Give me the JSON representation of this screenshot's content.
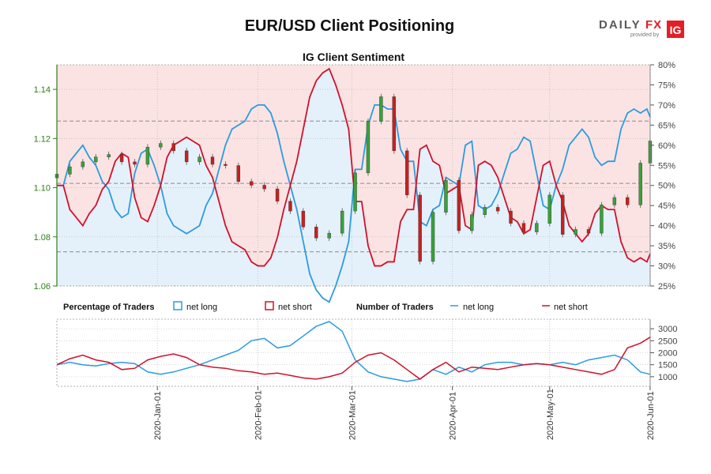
{
  "page": {
    "title": "EUR/USD Client Positioning"
  },
  "logo": {
    "brand": "DAILYFX",
    "tagline": "provided by",
    "badge": "IG"
  },
  "colors": {
    "long": "#2b9be0",
    "short": "#d0112b",
    "long_fill": "#e5f1fa",
    "short_fill": "#fbe3e3",
    "candle_up": "#3aa13a",
    "candle_down": "#c7201f",
    "price_axis": "#2e7d16",
    "grid": "#9a9a9a"
  },
  "legend": {
    "pct_title": "Percentage of Traders",
    "num_title": "Number of Traders",
    "long_label": "net long",
    "short_label": "net short"
  },
  "chart_data": [
    {
      "type": "line",
      "panel": "top",
      "title": "IG Client Sentiment",
      "y_left_range": [
        1.06,
        1.15
      ],
      "y_left_ticks": [
        "1.06",
        "1.08",
        "1.10",
        "1.12",
        "1.14"
      ],
      "y_right_range": [
        25,
        80
      ],
      "y_right_ticks": [
        "25%",
        "30%",
        "35%",
        "40%",
        "45%",
        "50%",
        "55%",
        "60%",
        "65%",
        "70%",
        "75%",
        "80%"
      ],
      "x_tick_labels": [
        "2020-Jan-01",
        "2020-Feb-01",
        "2020-Mar-01",
        "2020-Apr-01",
        "2020-May-01",
        "2020-Jun-01"
      ],
      "x_range": [
        "2019-12-01",
        "2020-06-01"
      ],
      "grid": true,
      "reference_lines_pct": [
        33.5,
        50.5,
        66
      ],
      "series": [
        {
          "name": "net short",
          "unit": "%",
          "x": [
            "2019-12-01",
            "2019-12-03",
            "2019-12-05",
            "2019-12-07",
            "2019-12-09",
            "2019-12-11",
            "2019-12-13",
            "2019-12-15",
            "2019-12-17",
            "2019-12-19",
            "2019-12-21",
            "2019-12-23",
            "2019-12-25",
            "2019-12-27",
            "2019-12-29",
            "2019-12-31",
            "2020-01-02",
            "2020-01-04",
            "2020-01-06",
            "2020-01-08",
            "2020-01-10",
            "2020-01-12",
            "2020-01-14",
            "2020-01-16",
            "2020-01-18",
            "2020-01-20",
            "2020-01-22",
            "2020-01-24",
            "2020-01-26",
            "2020-01-28",
            "2020-01-30",
            "2020-02-01",
            "2020-02-03",
            "2020-02-05",
            "2020-02-07",
            "2020-02-09",
            "2020-02-11",
            "2020-02-13",
            "2020-02-15",
            "2020-02-17",
            "2020-02-19",
            "2020-02-21",
            "2020-02-23",
            "2020-02-25",
            "2020-02-27",
            "2020-02-29",
            "2020-03-02",
            "2020-03-04",
            "2020-03-06",
            "2020-03-08",
            "2020-03-10",
            "2020-03-12",
            "2020-03-14",
            "2020-03-16",
            "2020-03-18",
            "2020-03-20",
            "2020-03-22",
            "2020-03-24",
            "2020-03-26",
            "2020-03-28",
            "2020-03-30",
            "2020-04-01",
            "2020-04-03",
            "2020-04-05",
            "2020-04-07",
            "2020-04-09",
            "2020-04-11",
            "2020-04-13",
            "2020-04-15",
            "2020-04-17",
            "2020-04-19",
            "2020-04-21",
            "2020-04-23",
            "2020-04-25",
            "2020-04-27",
            "2020-04-29",
            "2020-05-01",
            "2020-05-03",
            "2020-05-05",
            "2020-05-07",
            "2020-05-09",
            "2020-05-11",
            "2020-05-13",
            "2020-05-15",
            "2020-05-17",
            "2020-05-19",
            "2020-05-21",
            "2020-05-23",
            "2020-05-25",
            "2020-05-27",
            "2020-05-29",
            "2020-05-31",
            "2020-06-01"
          ],
          "values": [
            50,
            50,
            44,
            42,
            40,
            43,
            45,
            49,
            51,
            56,
            58,
            57,
            47,
            42,
            41,
            45,
            50,
            57,
            60,
            61,
            62,
            61,
            60,
            55,
            52,
            46,
            40,
            36,
            35,
            34,
            31,
            30,
            30,
            32,
            37,
            44,
            50,
            56,
            64,
            72,
            76,
            78,
            79,
            75,
            70,
            64,
            46,
            46,
            35,
            30,
            30,
            31,
            31,
            41,
            44,
            44,
            59,
            60,
            56,
            55,
            48,
            49,
            50,
            40,
            39,
            55,
            56,
            55,
            52,
            47,
            42,
            41,
            38,
            39,
            47,
            55,
            56,
            50,
            46,
            40,
            38,
            36,
            38,
            43,
            45,
            44,
            44,
            36,
            32,
            31,
            32,
            31,
            33
          ]
        },
        {
          "name": "net long",
          "unit": "%",
          "x": [
            "2019-12-01",
            "2019-12-03",
            "2019-12-05",
            "2019-12-07",
            "2019-12-09",
            "2019-12-11",
            "2019-12-13",
            "2019-12-15",
            "2019-12-17",
            "2019-12-19",
            "2019-12-21",
            "2019-12-23",
            "2019-12-25",
            "2019-12-27",
            "2019-12-29",
            "2019-12-31",
            "2020-01-02",
            "2020-01-04",
            "2020-01-06",
            "2020-01-08",
            "2020-01-10",
            "2020-01-12",
            "2020-01-14",
            "2020-01-16",
            "2020-01-18",
            "2020-01-20",
            "2020-01-22",
            "2020-01-24",
            "2020-01-26",
            "2020-01-28",
            "2020-01-30",
            "2020-02-01",
            "2020-02-03",
            "2020-02-05",
            "2020-02-07",
            "2020-02-09",
            "2020-02-11",
            "2020-02-13",
            "2020-02-15",
            "2020-02-17",
            "2020-02-19",
            "2020-02-21",
            "2020-02-23",
            "2020-02-25",
            "2020-02-27",
            "2020-02-29",
            "2020-03-02",
            "2020-03-04",
            "2020-03-06",
            "2020-03-08",
            "2020-03-10",
            "2020-03-12",
            "2020-03-14",
            "2020-03-16",
            "2020-03-18",
            "2020-03-20",
            "2020-03-22",
            "2020-03-24",
            "2020-03-26",
            "2020-03-28",
            "2020-03-30",
            "2020-04-01",
            "2020-04-03",
            "2020-04-05",
            "2020-04-07",
            "2020-04-09",
            "2020-04-11",
            "2020-04-13",
            "2020-04-15",
            "2020-04-17",
            "2020-04-19",
            "2020-04-21",
            "2020-04-23",
            "2020-04-25",
            "2020-04-27",
            "2020-04-29",
            "2020-05-01",
            "2020-05-03",
            "2020-05-05",
            "2020-05-07",
            "2020-05-09",
            "2020-05-11",
            "2020-05-13",
            "2020-05-15",
            "2020-05-17",
            "2020-05-19",
            "2020-05-21",
            "2020-05-23",
            "2020-05-25",
            "2020-05-27",
            "2020-05-29",
            "2020-05-31",
            "2020-06-01"
          ],
          "values": [
            50,
            50,
            56,
            58,
            60,
            57,
            55,
            51,
            49,
            44,
            42,
            43,
            53,
            58,
            59,
            55,
            50,
            43,
            40,
            39,
            38,
            39,
            40,
            45,
            48,
            54,
            60,
            64,
            65,
            66,
            69,
            70,
            70,
            68,
            63,
            56,
            50,
            44,
            36,
            28,
            24,
            22,
            21,
            25,
            30,
            36,
            54,
            54,
            65,
            70,
            70,
            69,
            69,
            59,
            56,
            56,
            41,
            40,
            44,
            45,
            52,
            51,
            50,
            60,
            61,
            45,
            44,
            45,
            48,
            53,
            58,
            59,
            62,
            61,
            53,
            45,
            44,
            50,
            54,
            60,
            62,
            64,
            62,
            57,
            55,
            56,
            56,
            64,
            68,
            69,
            68,
            69,
            67
          ]
        }
      ],
      "price_series": {
        "name": "EUR/USD",
        "x": [
          "2019-12-01",
          "2019-12-05",
          "2019-12-09",
          "2019-12-13",
          "2019-12-17",
          "2019-12-21",
          "2019-12-25",
          "2019-12-29",
          "2020-01-02",
          "2020-01-06",
          "2020-01-10",
          "2020-01-14",
          "2020-01-18",
          "2020-01-22",
          "2020-01-26",
          "2020-01-30",
          "2020-02-03",
          "2020-02-07",
          "2020-02-11",
          "2020-02-15",
          "2020-02-19",
          "2020-02-23",
          "2020-02-27",
          "2020-03-02",
          "2020-03-06",
          "2020-03-10",
          "2020-03-14",
          "2020-03-18",
          "2020-03-22",
          "2020-03-26",
          "2020-03-30",
          "2020-04-03",
          "2020-04-07",
          "2020-04-11",
          "2020-04-15",
          "2020-04-19",
          "2020-04-23",
          "2020-04-27",
          "2020-05-01",
          "2020-05-05",
          "2020-05-09",
          "2020-05-13",
          "2020-05-17",
          "2020-05-21",
          "2020-05-25",
          "2020-05-29",
          "2020-06-01"
        ],
        "close": [
          1.1055,
          1.1085,
          1.1105,
          1.1125,
          1.1135,
          1.1105,
          1.1095,
          1.1165,
          1.118,
          1.115,
          1.1105,
          1.1125,
          1.1095,
          1.109,
          1.1025,
          1.101,
          1.0995,
          1.0945,
          1.0905,
          1.084,
          1.0795,
          1.0815,
          1.0905,
          1.106,
          1.127,
          1.137,
          1.115,
          1.097,
          1.07,
          1.09,
          1.103,
          1.0825,
          1.089,
          1.092,
          1.0905,
          1.0855,
          1.082,
          1.0855,
          1.097,
          1.081,
          1.083,
          1.0815,
          1.093,
          1.096,
          1.093,
          1.11,
          1.119
        ]
      }
    },
    {
      "type": "line",
      "panel": "bottom",
      "title": "",
      "y_range": [
        600,
        3400
      ],
      "y_ticks": [
        "1000",
        "1500",
        "2000",
        "2500",
        "3000"
      ],
      "series": [
        {
          "name": "net long",
          "x": [
            "2019-12-01",
            "2019-12-05",
            "2019-12-09",
            "2019-12-13",
            "2019-12-17",
            "2019-12-21",
            "2019-12-25",
            "2019-12-29",
            "2020-01-02",
            "2020-01-06",
            "2020-01-10",
            "2020-01-14",
            "2020-01-18",
            "2020-01-22",
            "2020-01-26",
            "2020-01-30",
            "2020-02-03",
            "2020-02-07",
            "2020-02-11",
            "2020-02-15",
            "2020-02-19",
            "2020-02-23",
            "2020-02-27",
            "2020-03-02",
            "2020-03-06",
            "2020-03-10",
            "2020-03-14",
            "2020-03-18",
            "2020-03-22",
            "2020-03-26",
            "2020-03-30",
            "2020-04-03",
            "2020-04-07",
            "2020-04-11",
            "2020-04-15",
            "2020-04-19",
            "2020-04-23",
            "2020-04-27",
            "2020-05-01",
            "2020-05-05",
            "2020-05-09",
            "2020-05-13",
            "2020-05-17",
            "2020-05-21",
            "2020-05-25",
            "2020-05-29",
            "2020-06-01"
          ],
          "values": [
            1500,
            1600,
            1500,
            1450,
            1550,
            1600,
            1550,
            1200,
            1100,
            1200,
            1350,
            1500,
            1700,
            1900,
            2100,
            2500,
            2600,
            2200,
            2300,
            2700,
            3100,
            3300,
            2900,
            1700,
            1200,
            1000,
            900,
            800,
            900,
            1300,
            1100,
            1400,
            1200,
            1500,
            1600,
            1600,
            1500,
            1550,
            1500,
            1600,
            1500,
            1700,
            1800,
            1900,
            1700,
            1200,
            1100
          ]
        },
        {
          "name": "net short",
          "x": [
            "2019-12-01",
            "2019-12-05",
            "2019-12-09",
            "2019-12-13",
            "2019-12-17",
            "2019-12-21",
            "2019-12-25",
            "2019-12-29",
            "2020-01-02",
            "2020-01-06",
            "2020-01-10",
            "2020-01-14",
            "2020-01-18",
            "2020-01-22",
            "2020-01-26",
            "2020-01-30",
            "2020-02-03",
            "2020-02-07",
            "2020-02-11",
            "2020-02-15",
            "2020-02-19",
            "2020-02-23",
            "2020-02-27",
            "2020-03-02",
            "2020-03-06",
            "2020-03-10",
            "2020-03-14",
            "2020-03-18",
            "2020-03-22",
            "2020-03-26",
            "2020-03-30",
            "2020-04-03",
            "2020-04-07",
            "2020-04-11",
            "2020-04-15",
            "2020-04-19",
            "2020-04-23",
            "2020-04-27",
            "2020-05-01",
            "2020-05-05",
            "2020-05-09",
            "2020-05-13",
            "2020-05-17",
            "2020-05-21",
            "2020-05-25",
            "2020-05-29",
            "2020-06-01"
          ],
          "values": [
            1500,
            1750,
            1900,
            1700,
            1600,
            1300,
            1350,
            1700,
            1850,
            1950,
            1800,
            1500,
            1400,
            1350,
            1250,
            1200,
            1100,
            1150,
            1050,
            950,
            900,
            1000,
            1150,
            1600,
            1900,
            2000,
            1700,
            1300,
            900,
            1300,
            1600,
            1200,
            1400,
            1350,
            1300,
            1400,
            1500,
            1550,
            1500,
            1400,
            1300,
            1200,
            1100,
            1300,
            2200,
            2400,
            2650
          ]
        }
      ]
    }
  ]
}
